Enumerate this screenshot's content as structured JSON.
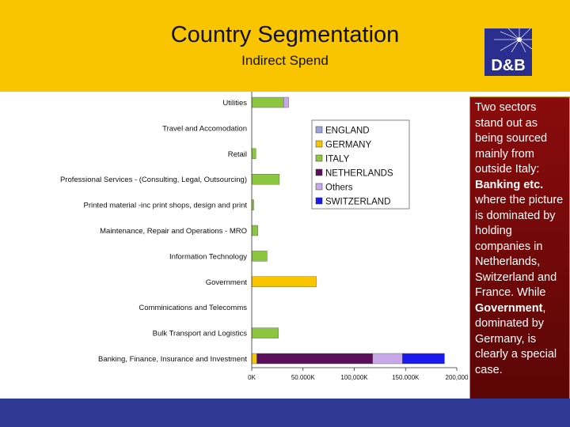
{
  "header": {
    "title": "Country Segmentation",
    "subtitle": "Indirect Spend"
  },
  "logo": {
    "text": "D&B",
    "bg_color": "#2a2f8f"
  },
  "callout": {
    "t1": "Two sectors stand out as being sourced mainly from outside Italy: ",
    "b1": "Banking etc.",
    "t2": " where the picture is dominated by holding companies in Netherlands, Switzerland and France. While ",
    "b2": "Government",
    "t3": ", dominated by Germany, is clearly a special case."
  },
  "chart_data": {
    "type": "bar",
    "orientation": "horizontal",
    "stacked": true,
    "categories": [
      "Utilities",
      "Travel and Accomodation",
      "Retail",
      "Professional Services - (Consulting, Legal, Outsourcing)",
      "Printed material -inc print shops, design and print",
      "Maintenance, Repair and Operations - MRO",
      "Information Technology",
      "Government",
      "Comminications and Telecomms",
      "Bulk Transport and Logistics",
      "Banking, Finance, Insurance and Investment"
    ],
    "series": [
      {
        "name": "ENGLAND",
        "color": "#9aa6d6",
        "values": [
          0,
          0,
          0,
          0,
          0,
          0,
          0,
          0,
          0,
          0,
          0
        ]
      },
      {
        "name": "GERMANY",
        "color": "#f9c400",
        "values": [
          0,
          0,
          0,
          0,
          0,
          0,
          0,
          63000,
          0,
          0,
          5000
        ]
      },
      {
        "name": "ITALY",
        "color": "#8cc63e",
        "values": [
          31000,
          0,
          4000,
          27000,
          2000,
          6000,
          15000,
          0,
          0,
          26000,
          0
        ]
      },
      {
        "name": "NETHERLANDS",
        "color": "#5b0e5b",
        "values": [
          0,
          0,
          0,
          0,
          0,
          0,
          0,
          0,
          0,
          0,
          113000
        ]
      },
      {
        "name": "Others",
        "color": "#c8a8e8",
        "values": [
          5000,
          0,
          0,
          0,
          0,
          0,
          0,
          0,
          0,
          0,
          29000
        ]
      },
      {
        "name": "SWITZERLAND",
        "color": "#1a1aee",
        "values": [
          0,
          0,
          0,
          0,
          0,
          0,
          0,
          0,
          0,
          0,
          41000
        ]
      }
    ],
    "xlim": [
      0,
      200000
    ],
    "xticks": [
      0,
      50000,
      100000,
      150000,
      200000
    ],
    "xtick_labels": [
      "0K",
      "50.000K",
      "100,000K",
      "150.000K",
      "200,000"
    ],
    "legend_position": "right",
    "grid": false
  }
}
